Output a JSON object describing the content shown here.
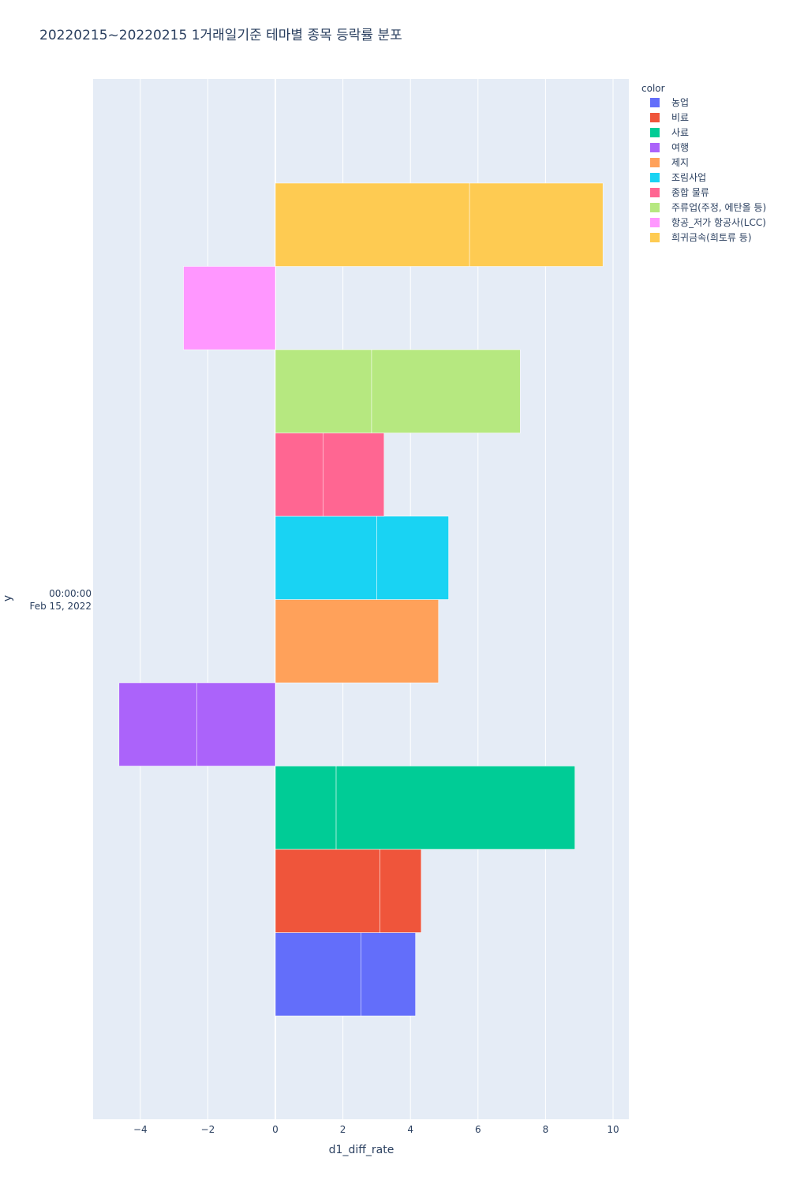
{
  "chart_data": {
    "type": "bar",
    "orientation": "horizontal",
    "barmode": "relative",
    "title": "20220215~20220215 1거래일기준 테마별 종목 등락률 분포",
    "xlabel": "d1_diff_rate",
    "ylabel": "y",
    "y_category_lines": [
      "00:00:00",
      "Feb 15, 2022"
    ],
    "xlim": [
      -5.4,
      10.5
    ],
    "xticks": [
      -4,
      -2,
      0,
      2,
      4,
      6,
      8,
      10
    ],
    "xtick_labels": [
      "−4",
      "−2",
      "0",
      "2",
      "4",
      "6",
      "8",
      "10"
    ],
    "grid": true,
    "legend": {
      "title": "color",
      "placement": "right"
    },
    "series": [
      {
        "name": "농업",
        "color": "#636efa",
        "segments": [
          2.53,
          1.62
        ]
      },
      {
        "name": "비료",
        "color": "#EF553B",
        "segments": [
          3.1,
          1.22
        ]
      },
      {
        "name": "사료",
        "color": "#00cc96",
        "segments": [
          1.8,
          7.07
        ]
      },
      {
        "name": "여행",
        "color": "#ab63fa",
        "segments": [
          -2.33,
          -2.3
        ]
      },
      {
        "name": "제지",
        "color": "#FFA15A",
        "segments": [
          4.83
        ]
      },
      {
        "name": "조림사업",
        "color": "#19d3f3",
        "segments": [
          3.0,
          2.13
        ]
      },
      {
        "name": "종합 물류",
        "color": "#FF6692",
        "segments": [
          1.42,
          1.8
        ]
      },
      {
        "name": "주류업(주정, 에탄올 등)",
        "color": "#B6E880",
        "segments": [
          2.85,
          4.4
        ]
      },
      {
        "name": "항공_저가 항공사(LCC)",
        "color": "#FF97FF",
        "segments": [
          -2.72
        ]
      },
      {
        "name": "희귀금속(희토류 등)",
        "color": "#FECB52",
        "segments": [
          5.75,
          3.95
        ]
      }
    ]
  }
}
